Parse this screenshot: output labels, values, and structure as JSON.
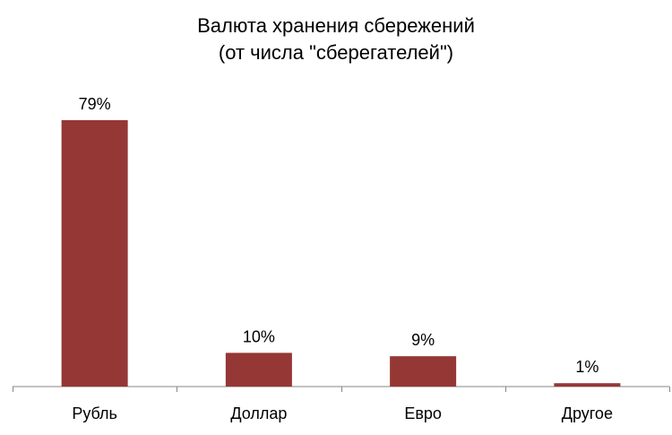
{
  "chart_data": {
    "type": "bar",
    "title": "Валюта хранения сбережений",
    "subtitle": "(от числа \"сберегателей\")",
    "categories": [
      "Рубль",
      "Доллар",
      "Евро",
      "Другое"
    ],
    "values": [
      79,
      10,
      9,
      1
    ],
    "data_labels": [
      "79%",
      "10%",
      "9%",
      "1%"
    ],
    "ylim": [
      0,
      100
    ],
    "grid": false,
    "legend": "none",
    "bar_color": "#953735"
  }
}
